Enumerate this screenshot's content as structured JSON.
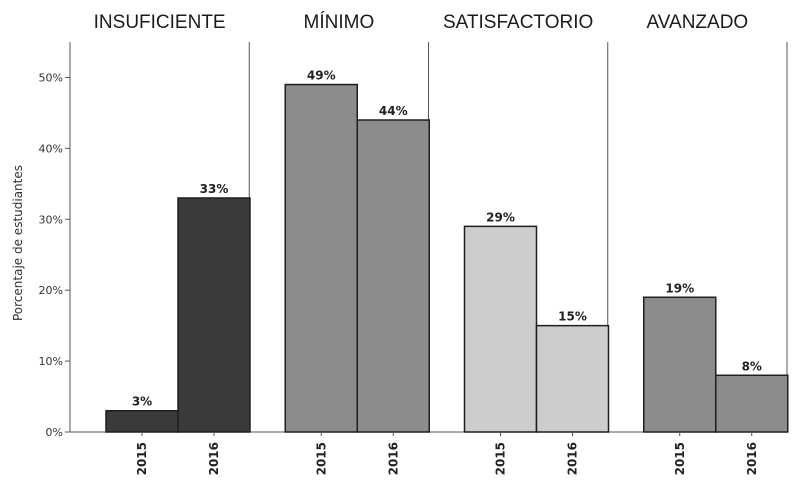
{
  "chart_data": {
    "type": "bar",
    "title": "",
    "ylabel": "Porcentaje de estudiantes",
    "ylim": [
      0,
      55
    ],
    "y_ticks": [
      "0%",
      "10%",
      "20%",
      "30%",
      "40%",
      "50%"
    ],
    "y_tick_values": [
      0,
      10,
      20,
      30,
      40,
      50
    ],
    "grid": false,
    "panels": [
      {
        "name": "INSUFICIENTE",
        "color": "#3a3a3a",
        "categories": [
          "2015",
          "2016"
        ],
        "values": [
          3,
          33
        ],
        "labels": [
          "3%",
          "33%"
        ]
      },
      {
        "name": "MÍNIMO",
        "color": "#8c8c8c",
        "categories": [
          "2015",
          "2016"
        ],
        "values": [
          49,
          44
        ],
        "labels": [
          "49%",
          "44%"
        ]
      },
      {
        "name": "SATISFACTORIO",
        "color": "#cdcdcd",
        "categories": [
          "2015",
          "2016"
        ],
        "values": [
          29,
          15
        ],
        "labels": [
          "29%",
          "15%"
        ]
      },
      {
        "name": "AVANZADO",
        "color": "#8c8c8c",
        "categories": [
          "2015",
          "2016"
        ],
        "values": [
          19,
          8
        ],
        "labels": [
          "19%",
          "8%"
        ]
      }
    ]
  }
}
